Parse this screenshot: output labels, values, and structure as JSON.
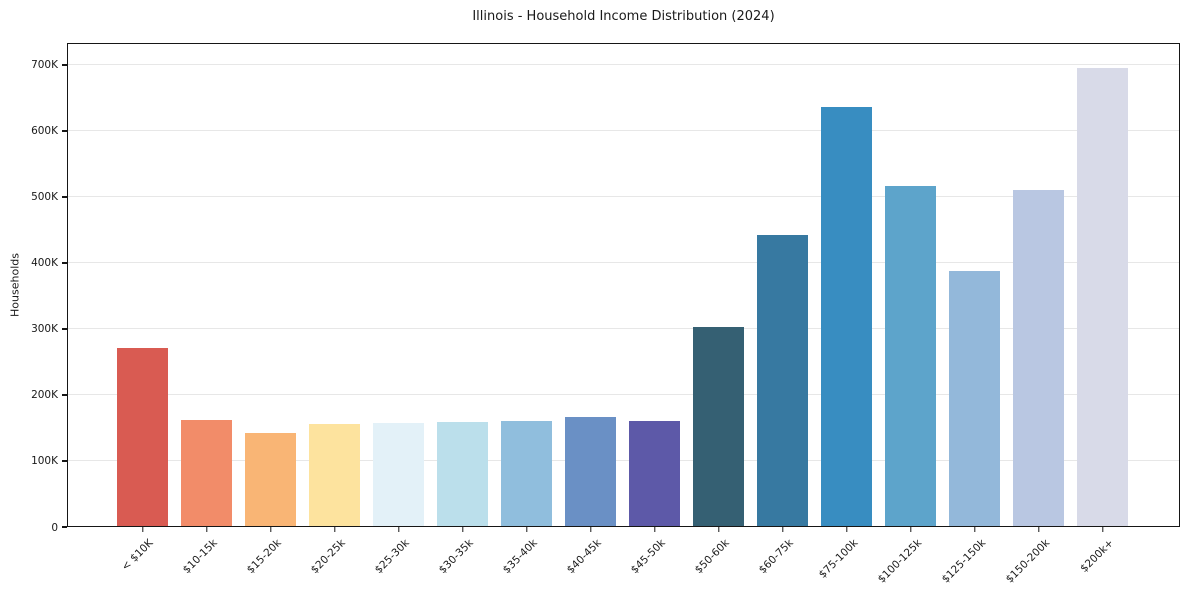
{
  "title": "Illinois - Household Income Distribution (2024)",
  "colors": {
    "background": "#ffffff",
    "grid": "#e7e7e7",
    "axis": "#161616",
    "text": "#1a1a1a"
  },
  "chart_data": {
    "type": "bar",
    "title": "Illinois - Household Income Distribution (2024)",
    "xlabel": "",
    "ylabel": "Households",
    "legend": "none",
    "grid": "horizontal-only",
    "ylim": [
      0,
      733000
    ],
    "ytick_values": [
      0,
      100000,
      200000,
      300000,
      400000,
      500000,
      600000,
      700000
    ],
    "ytick_labels": [
      "0",
      "100K",
      "200K",
      "300K",
      "400K",
      "500K",
      "600K",
      "700K"
    ],
    "categories": [
      "< $10K",
      "$10-15k",
      "$15-20k",
      "$20-25k",
      "$25-30k",
      "$30-35k",
      "$35-40k",
      "$40-45k",
      "$45-50k",
      "$50-60k",
      "$60-75k",
      "$75-100k",
      "$100-125k",
      "$125-150k",
      "$150-200k",
      "$200k+"
    ],
    "values": [
      271000,
      162000,
      142000,
      156000,
      158000,
      159000,
      161000,
      166000,
      160000,
      303000,
      442000,
      636000,
      517000,
      388000,
      511000,
      695000
    ],
    "bar_colors": [
      "#d95b52",
      "#f28c69",
      "#f9b575",
      "#fde39e",
      "#e3f1f8",
      "#bbdfeb",
      "#90bedd",
      "#6a90c5",
      "#5d59a8",
      "#356073",
      "#3779a1",
      "#388dc1",
      "#5da4cb",
      "#93b8da",
      "#b9c7e2",
      "#d8dae8"
    ]
  }
}
